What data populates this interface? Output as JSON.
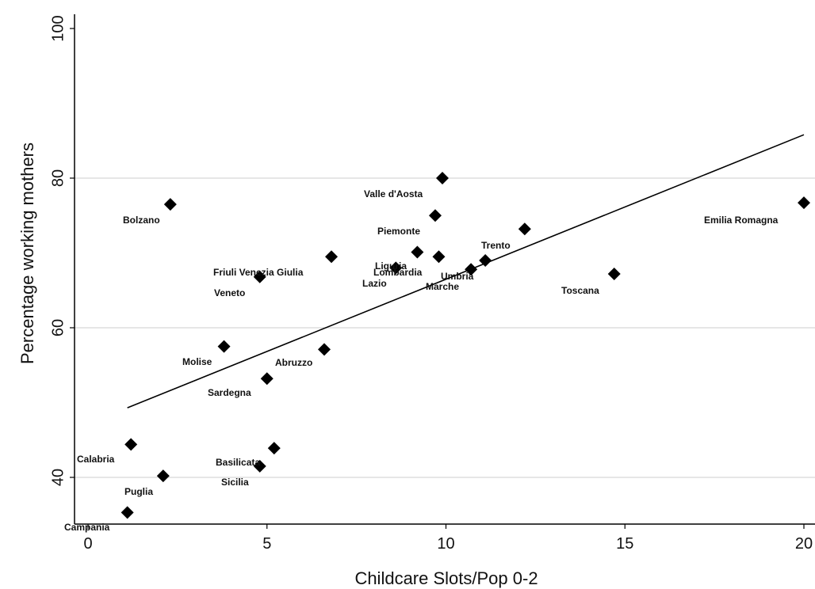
{
  "chart_data": {
    "type": "scatter",
    "xlabel": "Childcare Slots/Pop 0-2",
    "ylabel": "Percentage working mothers",
    "xlim": [
      0,
      20
    ],
    "ylim": [
      34,
      100
    ],
    "x_ticks": [
      "0",
      "5",
      "10",
      "15",
      "20"
    ],
    "y_ticks": [
      "40",
      "60",
      "80",
      "100"
    ],
    "grid": "horizontal",
    "points": [
      {
        "label": "Bolzano",
        "x": 2.3,
        "y": 76.5
      },
      {
        "label": "Valle d'Aosta",
        "x": 9.9,
        "y": 80.0
      },
      {
        "label": "Emilia Romagna",
        "x": 20.0,
        "y": 76.7
      },
      {
        "label": "Piemonte",
        "x": 9.7,
        "y": 75.0
      },
      {
        "label": "Trento",
        "x": 12.2,
        "y": 73.2
      },
      {
        "label": "Friuli Venezia Giulia",
        "x": 6.8,
        "y": 69.5
      },
      {
        "label": "Liguria",
        "x": 8.6,
        "y": 68.0
      },
      {
        "label": "Lombardia",
        "x": 9.2,
        "y": 70.1
      },
      {
        "label": "Umbria",
        "x": 11.1,
        "y": 69.0
      },
      {
        "label": "Marche",
        "x": 9.8,
        "y": 69.5
      },
      {
        "label": "Lazio",
        "x": 10.7,
        "y": 67.8
      },
      {
        "label": "Veneto",
        "x": 4.8,
        "y": 66.8
      },
      {
        "label": "Toscana",
        "x": 14.7,
        "y": 67.2
      },
      {
        "label": "Molise",
        "x": 3.8,
        "y": 57.5
      },
      {
        "label": "Abruzzo",
        "x": 6.6,
        "y": 57.1
      },
      {
        "label": "Sardegna",
        "x": 5.0,
        "y": 53.2
      },
      {
        "label": "Calabria",
        "x": 1.2,
        "y": 44.4
      },
      {
        "label": "Basilicata",
        "x": 5.2,
        "y": 43.9
      },
      {
        "label": "Sicilia",
        "x": 4.8,
        "y": 41.5
      },
      {
        "label": "Puglia",
        "x": 2.1,
        "y": 40.2
      },
      {
        "label": "Campania",
        "x": 1.1,
        "y": 35.3
      }
    ],
    "fit_line": {
      "x": [
        1.1,
        20.0
      ],
      "y": [
        49.3,
        85.8
      ]
    }
  }
}
